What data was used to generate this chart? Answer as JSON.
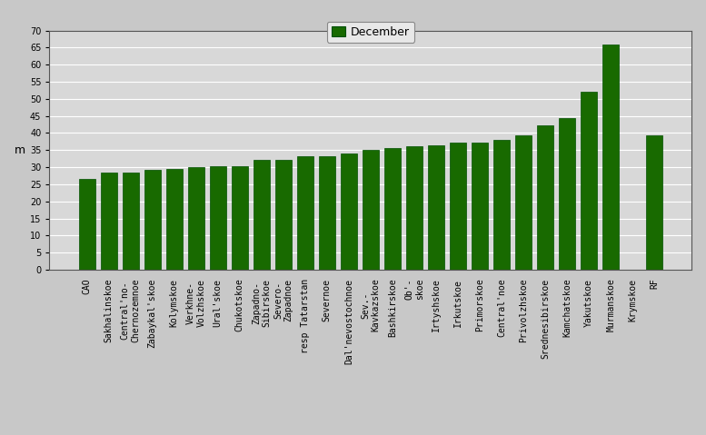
{
  "categories": [
    "CAO",
    "Sakhalinskoe",
    "Central'no-\nChernozemnoe",
    "Zabaykal'skoe",
    "Kolymskoe",
    "Verkhne-\nVolzhskoe",
    "Ural'skoe",
    "Chukotskoe",
    "Zapadno-\nSibirskoe",
    "Severo-\nZapadnoe",
    "resp Tatarstan",
    "Severnoe",
    "Dal'nevostochnoe",
    "Sev.-\nKavkazskoe",
    "Bashkirskoe",
    "Ob'-\nskoe",
    "Irtyshskoe",
    "Irkutskoe",
    "Primorskoe",
    "Central'noe",
    "Privolzhskoe",
    "Srednesibirskoe",
    "Kamchatskoe",
    "Yakutskoe",
    "Murmanskoe",
    "Krymskoe",
    "RF"
  ],
  "values": [
    26.5,
    28.3,
    28.3,
    29.3,
    29.5,
    30.1,
    30.2,
    30.3,
    32.1,
    32.2,
    33.2,
    33.3,
    34.1,
    35.2,
    35.5,
    36.2,
    36.4,
    37.1,
    37.3,
    38.1,
    39.2,
    42.2,
    44.3,
    52.2,
    66.0,
    0.0,
    39.3
  ],
  "bar_color": "#186a00",
  "bar_edge_color": "#005000",
  "ylabel": "m",
  "ylim": [
    0,
    70
  ],
  "yticks": [
    0,
    5,
    10,
    15,
    20,
    25,
    30,
    35,
    40,
    45,
    50,
    55,
    60,
    65,
    70
  ],
  "legend_label": "December",
  "legend_color": "#186a00",
  "plot_bg_color": "#d8d8d8",
  "fig_bg_color": "#c8c8c8",
  "grid_color": "#ffffff",
  "tick_fontsize": 7,
  "ylabel_fontsize": 9,
  "legend_fontsize": 9
}
